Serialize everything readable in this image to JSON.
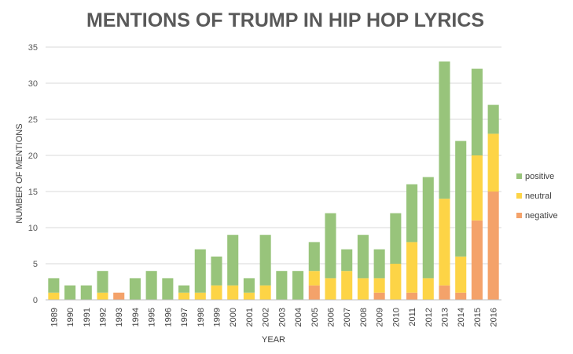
{
  "chart_data": {
    "type": "bar",
    "stacked": true,
    "title": "MENTIONS OF TRUMP IN HIP HOP LYRICS",
    "xlabel": "YEAR",
    "ylabel": "NUMBER OF MENTIONS",
    "ylim": [
      0,
      35
    ],
    "yticks": [
      0,
      5,
      10,
      15,
      20,
      25,
      30,
      35
    ],
    "grid": "horizontal",
    "legend_position": "right",
    "categories": [
      "1989",
      "1990",
      "1991",
      "1992",
      "1993",
      "1994",
      "1995",
      "1996",
      "1997",
      "1998",
      "1999",
      "2000",
      "2001",
      "2002",
      "2003",
      "2004",
      "2005",
      "2006",
      "2007",
      "2008",
      "2009",
      "2010",
      "2011",
      "2012",
      "2013",
      "2014",
      "2015",
      "2016"
    ],
    "series": [
      {
        "name": "negative",
        "color": "#f4a26a",
        "values": [
          0,
          0,
          0,
          0,
          1,
          0,
          0,
          0,
          0,
          0,
          0,
          0,
          0,
          0,
          0,
          0,
          2,
          0,
          0,
          0,
          1,
          0,
          1,
          0,
          2,
          1,
          11,
          15
        ]
      },
      {
        "name": "neutral",
        "color": "#fdd446",
        "values": [
          1,
          0,
          0,
          1,
          0,
          0,
          0,
          0,
          1,
          1,
          2,
          2,
          1,
          2,
          0,
          0,
          2,
          3,
          4,
          3,
          2,
          5,
          7,
          3,
          12,
          5,
          9,
          8
        ]
      },
      {
        "name": "positive",
        "color": "#98c47b",
        "values": [
          2,
          2,
          2,
          3,
          0,
          3,
          4,
          3,
          1,
          6,
          4,
          7,
          2,
          7,
          4,
          4,
          4,
          9,
          3,
          6,
          4,
          7,
          8,
          14,
          19,
          16,
          12,
          4
        ]
      }
    ]
  }
}
